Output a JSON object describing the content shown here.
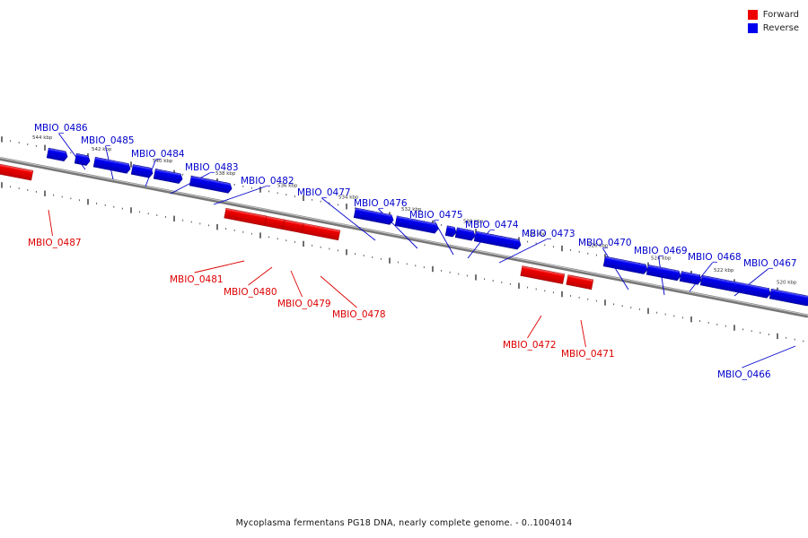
{
  "legend": {
    "forward_label": "Forward",
    "reverse_label": "Reverse",
    "forward_color": "#ee0000",
    "reverse_color": "#0000ee"
  },
  "footer": "Mycoplasma fermentans PG18 DNA, nearly complete genome. - 0..1004014",
  "scale_labels": [
    "544 kbp",
    "542 kbp",
    "540 kbp",
    "538 kbp",
    "536 kbp",
    "534 kbp",
    "532 kbp",
    "530 kbp",
    "528 kbp",
    "526 kbp",
    "524 kbp",
    "522 kbp",
    "520 kbp"
  ],
  "genes": [
    {
      "id": "MBIO_0487",
      "strand": "forward"
    },
    {
      "id": "MBIO_0486",
      "strand": "reverse"
    },
    {
      "id": "MBIO_0485",
      "strand": "reverse"
    },
    {
      "id": "MBIO_0484",
      "strand": "reverse"
    },
    {
      "id": "MBIO_0483",
      "strand": "reverse"
    },
    {
      "id": "MBIO_0482",
      "strand": "reverse"
    },
    {
      "id": "MBIO_0481",
      "strand": "forward"
    },
    {
      "id": "MBIO_0480",
      "strand": "forward"
    },
    {
      "id": "MBIO_0479",
      "strand": "forward"
    },
    {
      "id": "MBIO_0478",
      "strand": "forward"
    },
    {
      "id": "MBIO_0477",
      "strand": "reverse"
    },
    {
      "id": "MBIO_0476",
      "strand": "reverse"
    },
    {
      "id": "MBIO_0475",
      "strand": "reverse"
    },
    {
      "id": "MBIO_0474",
      "strand": "reverse"
    },
    {
      "id": "MBIO_0473",
      "strand": "reverse"
    },
    {
      "id": "MBIO_0472",
      "strand": "forward"
    },
    {
      "id": "MBIO_0471",
      "strand": "forward"
    },
    {
      "id": "MBIO_0470",
      "strand": "reverse"
    },
    {
      "id": "MBIO_0469",
      "strand": "reverse"
    },
    {
      "id": "MBIO_0468",
      "strand": "reverse"
    },
    {
      "id": "MBIO_0467",
      "strand": "reverse"
    },
    {
      "id": "MBIO_0466",
      "strand": "reverse"
    }
  ]
}
